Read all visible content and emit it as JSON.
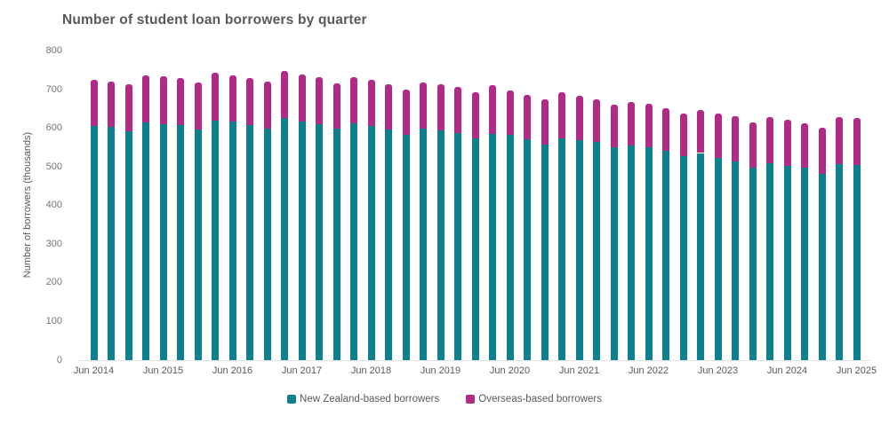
{
  "page": {
    "background": "#ffffff"
  },
  "colors": {
    "title_text": "#595959",
    "axis_text": "#757575",
    "x_axis_text": "#595959",
    "axis_line": "#e3e3e3",
    "nz_based": "#0E808D",
    "overseas_based": "#AF2B85"
  },
  "chart_data": {
    "type": "bar",
    "stacked": true,
    "title": "Number of student loan borrowers by quarter",
    "xlabel": "",
    "ylabel": "Number of borrowers (thousands)",
    "ylim": [
      0,
      800
    ],
    "ytick_step": 100,
    "ytick_labels": [
      "0",
      "100",
      "200",
      "300",
      "400",
      "500",
      "600",
      "700",
      "800"
    ],
    "grid": false,
    "legend_position": "bottom-center",
    "x_tick_labels": [
      "Jun 2014",
      "Jun 2015",
      "Jun 2016",
      "Jun 2017",
      "Jun 2018",
      "Jun 2019",
      "Jun 2020",
      "Jun 2021",
      "Jun 2022",
      "Jun 2023",
      "Jun 2024",
      "Jun 2025"
    ],
    "categories": [
      "Jun 2014",
      "Sep 2014",
      "Dec 2014",
      "Mar 2015",
      "Jun 2015",
      "Sep 2015",
      "Dec 2015",
      "Mar 2016",
      "Jun 2016",
      "Sep 2016",
      "Dec 2016",
      "Mar 2017",
      "Jun 2017",
      "Sep 2017",
      "Dec 2017",
      "Mar 2018",
      "Jun 2018",
      "Sep 2018",
      "Dec 2018",
      "Mar 2019",
      "Jun 2019",
      "Sep 2019",
      "Dec 2019",
      "Mar 2020",
      "Jun 2020",
      "Sep 2020",
      "Dec 2020",
      "Mar 2021",
      "Jun 2021",
      "Sep 2021",
      "Dec 2021",
      "Mar 2022",
      "Jun 2022",
      "Sep 2022",
      "Dec 2022",
      "Mar 2023",
      "Jun 2023",
      "Sep 2023",
      "Dec 2023",
      "Mar 2024",
      "Jun 2024",
      "Sep 2024",
      "Dec 2024",
      "Mar 2025",
      "Jun 2025"
    ],
    "series": [
      {
        "name": "New Zealand-based borrowers",
        "color": "#0E808D",
        "values": [
          606,
          603,
          593,
          616,
          611,
          609,
          596,
          620,
          618,
          609,
          598,
          626,
          617,
          611,
          598,
          612,
          607,
          596,
          584,
          598,
          594,
          588,
          574,
          586,
          582,
          571,
          557,
          575,
          570,
          565,
          551,
          555,
          550,
          542,
          529,
          536,
          523,
          515,
          498,
          510,
          503,
          498,
          482,
          507,
          506
        ]
      },
      {
        "name": "Overseas-based borrowers",
        "color": "#AF2B85",
        "values": [
          120,
          118,
          120,
          122,
          123,
          120,
          122,
          124,
          119,
          122,
          123,
          122,
          123,
          121,
          119,
          121,
          119,
          119,
          117,
          121,
          119,
          118,
          120,
          125,
          115,
          115,
          118,
          119,
          115,
          111,
          111,
          114,
          113,
          110,
          109,
          111,
          115,
          117,
          117,
          118,
          118,
          114,
          119,
          122,
          120
        ]
      }
    ]
  }
}
